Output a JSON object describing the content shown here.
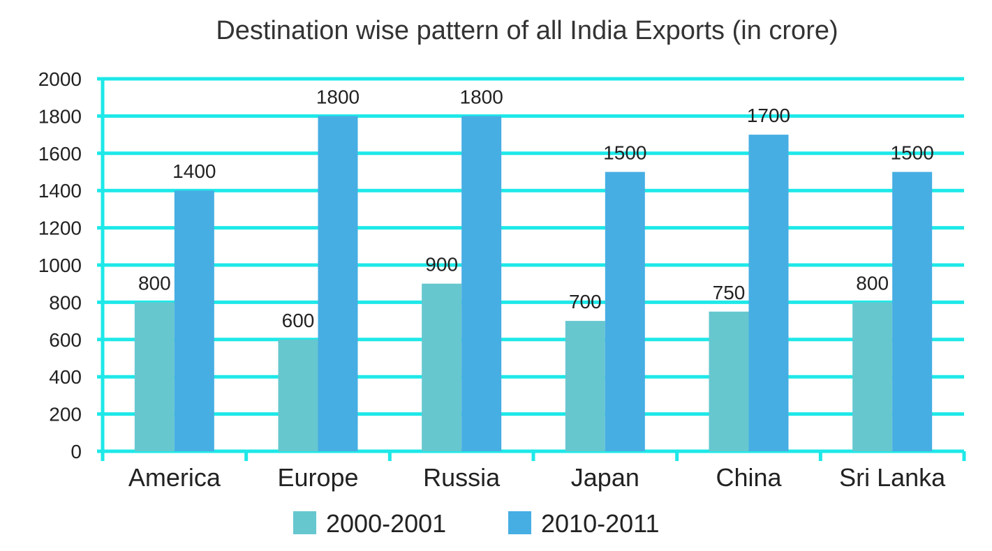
{
  "chart_data": {
    "type": "bar",
    "title": "Destination wise pattern of all India Exports (in crore)",
    "xlabel": "",
    "ylabel": "",
    "categories": [
      "America",
      "Europe",
      "Russia",
      "Japan",
      "China",
      "Sri Lanka"
    ],
    "series": [
      {
        "name": "2000-2001",
        "values": [
          800,
          600,
          900,
          700,
          750,
          800
        ],
        "color": "#66C7CF"
      },
      {
        "name": "2010-2011",
        "values": [
          1400,
          1800,
          1800,
          1500,
          1700,
          1500
        ],
        "color": "#46AEE3"
      }
    ],
    "ylim": [
      0,
      2000
    ],
    "yticks": [
      "0",
      "200",
      "400",
      "600",
      "800",
      "1000",
      "1200",
      "1400",
      "1600",
      "1800",
      "2000"
    ],
    "grid": true,
    "grid_color": "#1EE8E8",
    "legend_position": "bottom"
  }
}
